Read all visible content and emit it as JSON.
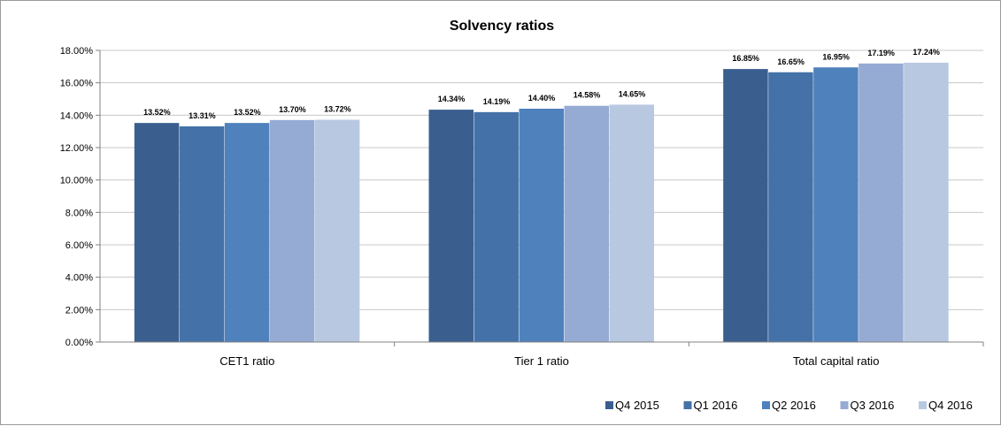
{
  "chart_data": {
    "type": "bar",
    "title": "Solvency ratios",
    "categories": [
      "CET1 ratio",
      "Tier 1 ratio",
      "Total capital ratio"
    ],
    "series": [
      {
        "name": "Q4 2015",
        "color": "#3a5f8f",
        "values": [
          13.52,
          14.34,
          16.85
        ],
        "labels": [
          "13.52%",
          "14.34%",
          "16.85%"
        ]
      },
      {
        "name": "Q1 2016",
        "color": "#4472a8",
        "values": [
          13.31,
          14.19,
          16.65
        ],
        "labels": [
          "13.31%",
          "14.19%",
          "16.65%"
        ]
      },
      {
        "name": "Q2 2016",
        "color": "#4f81bd",
        "values": [
          13.52,
          14.4,
          16.95
        ],
        "labels": [
          "13.52%",
          "14.40%",
          "16.95%"
        ]
      },
      {
        "name": "Q3 2016",
        "color": "#95abd4",
        "values": [
          13.7,
          14.58,
          17.19
        ],
        "labels": [
          "13.70%",
          "14.58%",
          "17.19%"
        ]
      },
      {
        "name": "Q4 2016",
        "color": "#b9c8e1",
        "values": [
          13.72,
          14.65,
          17.24
        ],
        "labels": [
          "13.72%",
          "14.65%",
          "17.24%"
        ]
      }
    ],
    "ylim": [
      0,
      18
    ],
    "yticks": [
      0,
      2,
      4,
      6,
      8,
      10,
      12,
      14,
      16,
      18
    ],
    "ytick_labels": [
      "0.00%",
      "2.00%",
      "4.00%",
      "6.00%",
      "8.00%",
      "10.00%",
      "12.00%",
      "14.00%",
      "16.00%",
      "18.00%"
    ],
    "grid": true,
    "legend": "bottom-right",
    "gridline_color": "#c8c8c8",
    "axis_color": "#808080"
  }
}
